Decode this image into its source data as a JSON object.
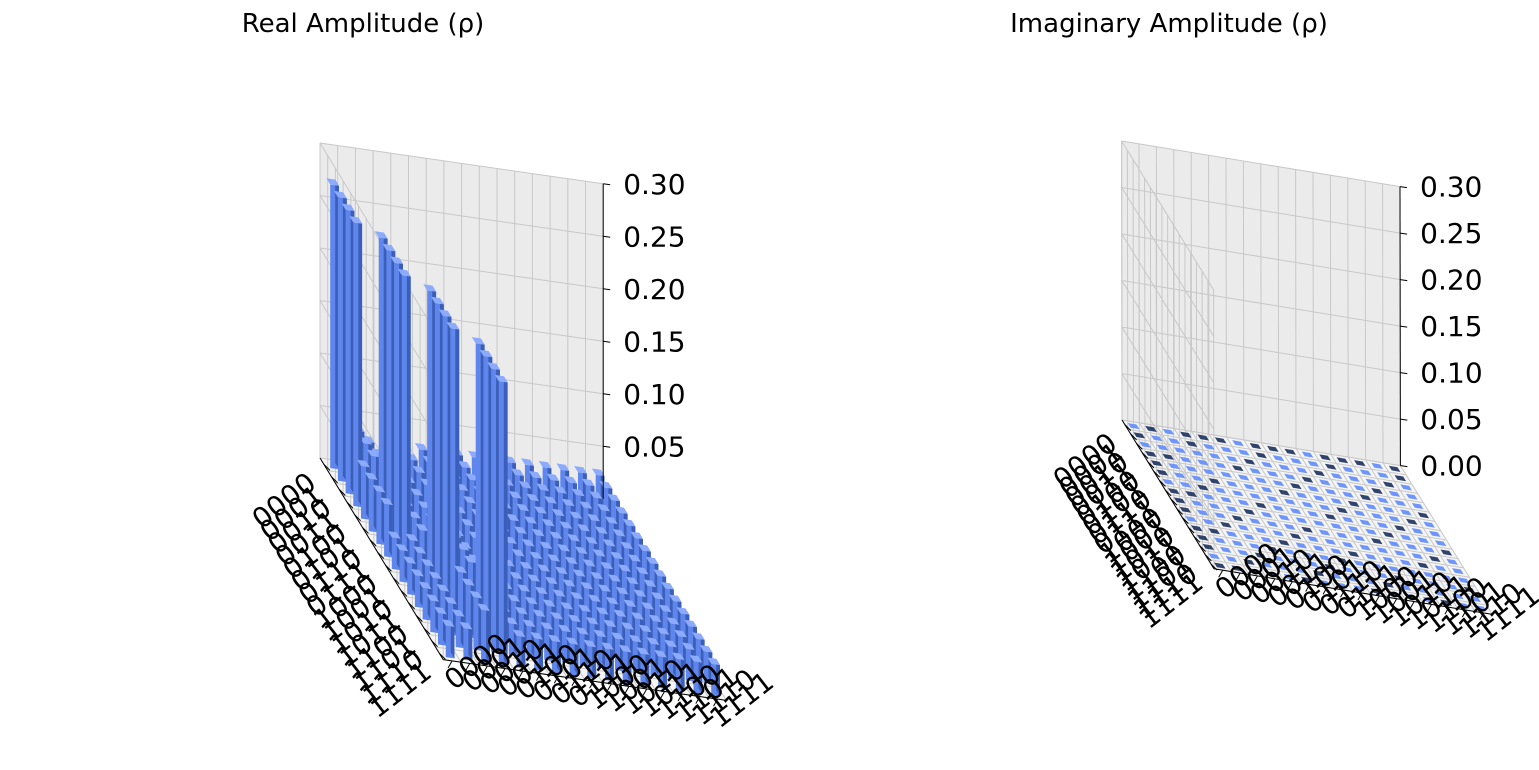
{
  "chart_data": [
    {
      "type": "bar3d",
      "title": "Real Amplitude (ρ)",
      "row_labels": [
        "0000",
        "0001",
        "0010",
        "0011",
        "0100",
        "0101",
        "0110",
        "0111",
        "1000",
        "1001",
        "1010",
        "1011",
        "1100",
        "1101",
        "1110",
        "1111"
      ],
      "col_labels": [
        "0000",
        "0001",
        "0010",
        "0011",
        "0100",
        "0101",
        "0110",
        "0111",
        "1000",
        "1001",
        "1010",
        "1011",
        "1100",
        "1101",
        "1110",
        "1111"
      ],
      "z_ticks": [
        "0.05",
        "0.10",
        "0.15",
        "0.20",
        "0.25",
        "0.30"
      ],
      "zlim": [
        0,
        0.3
      ],
      "values": [
        [
          0.27,
          0.05,
          0.03,
          0.03,
          0.03,
          0.03,
          0.03,
          0.03,
          0.03,
          0.03,
          0.03,
          0.03,
          0.03,
          0.03,
          0.03,
          0.03
        ],
        [
          0.27,
          0.05,
          0.03,
          0.03,
          0.03,
          0.03,
          0.03,
          0.03,
          0.03,
          0.03,
          0.03,
          0.03,
          0.03,
          0.03,
          0.03,
          0.03
        ],
        [
          0.27,
          0.05,
          0.03,
          0.03,
          0.03,
          0.03,
          0.03,
          0.03,
          0.03,
          0.03,
          0.03,
          0.03,
          0.03,
          0.03,
          0.03,
          0.03
        ],
        [
          0.27,
          0.05,
          0.03,
          0.03,
          0.03,
          0.03,
          0.03,
          0.03,
          0.03,
          0.03,
          0.03,
          0.03,
          0.03,
          0.03,
          0.03,
          0.03
        ],
        [
          0.05,
          0.27,
          0.03,
          0.03,
          0.03,
          0.03,
          0.03,
          0.03,
          0.03,
          0.03,
          0.03,
          0.03,
          0.03,
          0.03,
          0.03,
          0.03
        ],
        [
          0.05,
          0.27,
          0.03,
          0.03,
          0.03,
          0.03,
          0.03,
          0.03,
          0.03,
          0.03,
          0.03,
          0.03,
          0.03,
          0.03,
          0.03,
          0.03
        ],
        [
          0.05,
          0.27,
          0.03,
          0.03,
          0.03,
          0.03,
          0.03,
          0.03,
          0.03,
          0.03,
          0.03,
          0.03,
          0.03,
          0.03,
          0.03,
          0.03
        ],
        [
          0.05,
          0.27,
          0.03,
          0.03,
          0.03,
          0.03,
          0.03,
          0.03,
          0.03,
          0.03,
          0.03,
          0.03,
          0.03,
          0.03,
          0.03,
          0.03
        ],
        [
          0.03,
          0.03,
          0.27,
          0.05,
          0.03,
          0.03,
          0.03,
          0.03,
          0.03,
          0.03,
          0.03,
          0.03,
          0.03,
          0.03,
          0.03,
          0.03
        ],
        [
          0.03,
          0.03,
          0.27,
          0.05,
          0.03,
          0.03,
          0.03,
          0.03,
          0.03,
          0.03,
          0.03,
          0.03,
          0.03,
          0.03,
          0.03,
          0.03
        ],
        [
          0.03,
          0.03,
          0.27,
          0.05,
          0.03,
          0.03,
          0.03,
          0.03,
          0.03,
          0.03,
          0.03,
          0.03,
          0.03,
          0.03,
          0.03,
          0.03
        ],
        [
          0.03,
          0.03,
          0.27,
          0.05,
          0.03,
          0.03,
          0.03,
          0.03,
          0.03,
          0.03,
          0.03,
          0.03,
          0.03,
          0.03,
          0.03,
          0.03
        ],
        [
          0.03,
          0.03,
          0.05,
          0.27,
          0.03,
          0.03,
          0.03,
          0.03,
          0.03,
          0.03,
          0.03,
          0.03,
          0.03,
          0.03,
          0.03,
          0.03
        ],
        [
          0.03,
          0.03,
          0.05,
          0.27,
          0.03,
          0.03,
          0.03,
          0.03,
          0.03,
          0.03,
          0.03,
          0.03,
          0.03,
          0.03,
          0.03,
          0.03
        ],
        [
          0.03,
          0.03,
          0.05,
          0.27,
          0.03,
          0.03,
          0.03,
          0.03,
          0.03,
          0.03,
          0.03,
          0.03,
          0.03,
          0.03,
          0.03,
          0.03
        ],
        [
          0.03,
          0.03,
          0.05,
          0.27,
          0.03,
          0.03,
          0.03,
          0.03,
          0.03,
          0.03,
          0.03,
          0.03,
          0.03,
          0.03,
          0.03,
          0.03
        ]
      ],
      "bar_color": "#6d95fb"
    },
    {
      "type": "bar3d",
      "title": "Imaginary Amplitude (ρ)",
      "row_labels": [
        "0000",
        "0001",
        "0010",
        "0011",
        "0100",
        "0101",
        "0110",
        "0111",
        "1000",
        "1001",
        "1010",
        "1011",
        "1100",
        "1101",
        "1110",
        "1111"
      ],
      "col_labels": [
        "0000",
        "0001",
        "0010",
        "0011",
        "0100",
        "0101",
        "0110",
        "0111",
        "1000",
        "1001",
        "1010",
        "1011",
        "1100",
        "1101",
        "1110",
        "1111"
      ],
      "z_ticks": [
        "0.00",
        "0.05",
        "0.10",
        "0.15",
        "0.20",
        "0.25",
        "0.30"
      ],
      "zlim": [
        0,
        0.3
      ],
      "values": "all 0.00",
      "bar_color": "#6d95fb",
      "dark_cell_color": "#30436c"
    }
  ]
}
